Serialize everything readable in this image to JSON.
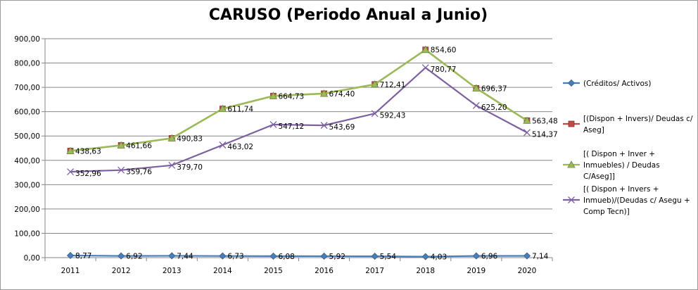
{
  "chart_data": {
    "type": "line",
    "title": "CARUSO (Periodo Anual a Junio)",
    "categories": [
      "2011",
      "2012",
      "2013",
      "2014",
      "2015",
      "2016",
      "2017",
      "2018",
      "2019",
      "2020"
    ],
    "ylim": [
      0,
      900
    ],
    "yticks": [
      "0,00",
      "100,00",
      "200,00",
      "300,00",
      "400,00",
      "500,00",
      "600,00",
      "700,00",
      "800,00",
      "900,00"
    ],
    "grid": true,
    "legend_position": "right",
    "series": [
      {
        "name": "(Créditos/ Activos)",
        "legend_lines": [
          "(Créditos/ Activos)"
        ],
        "color": "#4a7ebb",
        "marker": "diamond",
        "values": [
          8.77,
          6.92,
          7.44,
          6.73,
          6.08,
          5.92,
          5.54,
          4.03,
          6.96,
          7.14
        ],
        "labels": [
          "8,77",
          "6,92",
          "7,44",
          "6,73",
          "6,08",
          "5,92",
          "5,54",
          "4,03",
          "6,96",
          "7,14"
        ]
      },
      {
        "name": "[(Dispon + Invers)/ Deudas c/ Aseg]",
        "legend_lines": [
          "[(Dispon + Invers)/ Deudas c/",
          "Aseg]"
        ],
        "color": "#be4b48",
        "marker": "square",
        "values": [
          438.63,
          461.66,
          490.83,
          611.74,
          664.73,
          674.4,
          712.41,
          854.6,
          696.37,
          563.48
        ],
        "labels": [
          "438,63",
          "461,66",
          "490,83",
          "611,74",
          "664,73",
          "674,40",
          "712,41",
          "854,60",
          "696,37",
          "563,48"
        ]
      },
      {
        "name": "[( Dispon + Inver + Inmuebles) / Deudas C/Aseg]]",
        "legend_lines": [
          "[( Dispon + Inver +",
          "Inmuebles) / Deudas",
          "C/Aseg]]"
        ],
        "color": "#9bbb59",
        "marker": "triangle",
        "values": [
          438.63,
          461.66,
          490.83,
          611.74,
          664.73,
          674.4,
          712.41,
          854.6,
          696.37,
          563.48
        ],
        "labels": []
      },
      {
        "name": "[( Dispon + Invers + Inmueb)/(Deudas c/ Asegu + Comp Tecn)]",
        "legend_lines": [
          "[( Dispon + Invers +",
          "Inmueb)/(Deudas c/ Asegu +",
          "Comp Tecn)]"
        ],
        "color": "#7d60a0",
        "marker": "x",
        "values": [
          352.96,
          359.76,
          379.7,
          463.02,
          547.12,
          543.69,
          592.43,
          780.77,
          625.2,
          514.37
        ],
        "labels": [
          "352,96",
          "359,76",
          "379,70",
          "463,02",
          "547,12",
          "543,69",
          "592,43",
          "780,77",
          "625,20",
          "514,37"
        ]
      }
    ]
  }
}
